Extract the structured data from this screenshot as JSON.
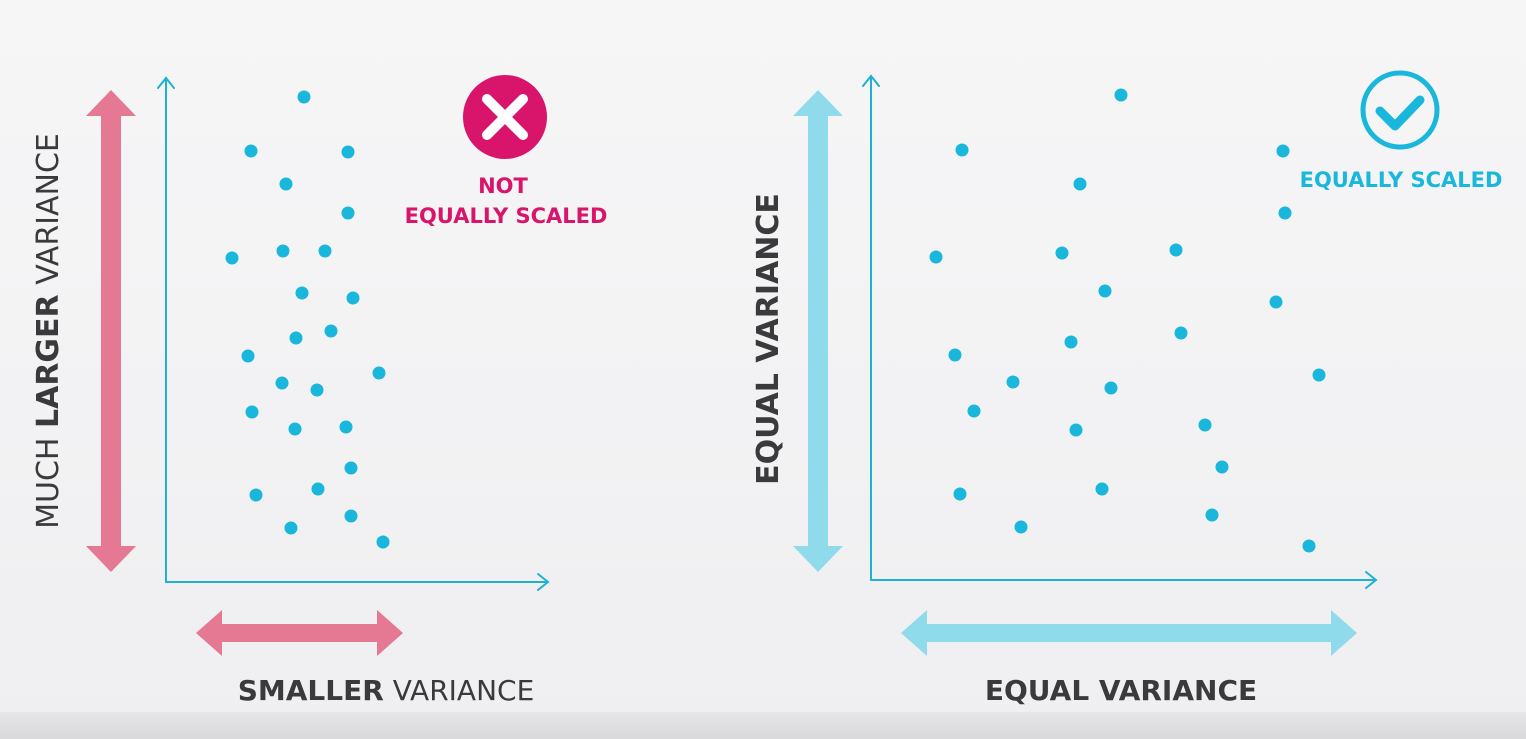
{
  "colors": {
    "background": "#f2f2f3",
    "pink_arrow": "#e57893",
    "magenta_badge": "#d8156a",
    "teal_axis": "#1fb0d2",
    "teal_points": "#1ab7dc",
    "teal_arrow": "#8fdbec",
    "label_text": "#3a3a3d"
  },
  "left_panel": {
    "y_label_regular_1": "MUCH ",
    "y_label_bold": "LARGER",
    "y_label_regular_2": " VARIANCE",
    "x_label_bold": "SMALLER",
    "x_label_regular": " VARIANCE",
    "badge_icon": "close-icon",
    "badge_line1": "NOT",
    "badge_line2": "EQUALLY SCALED"
  },
  "right_panel": {
    "y_label": "EQUAL VARIANCE",
    "x_label": "EQUAL VARIANCE",
    "badge_icon": "check-icon",
    "badge_text": "EQUALLY SCALED"
  }
}
